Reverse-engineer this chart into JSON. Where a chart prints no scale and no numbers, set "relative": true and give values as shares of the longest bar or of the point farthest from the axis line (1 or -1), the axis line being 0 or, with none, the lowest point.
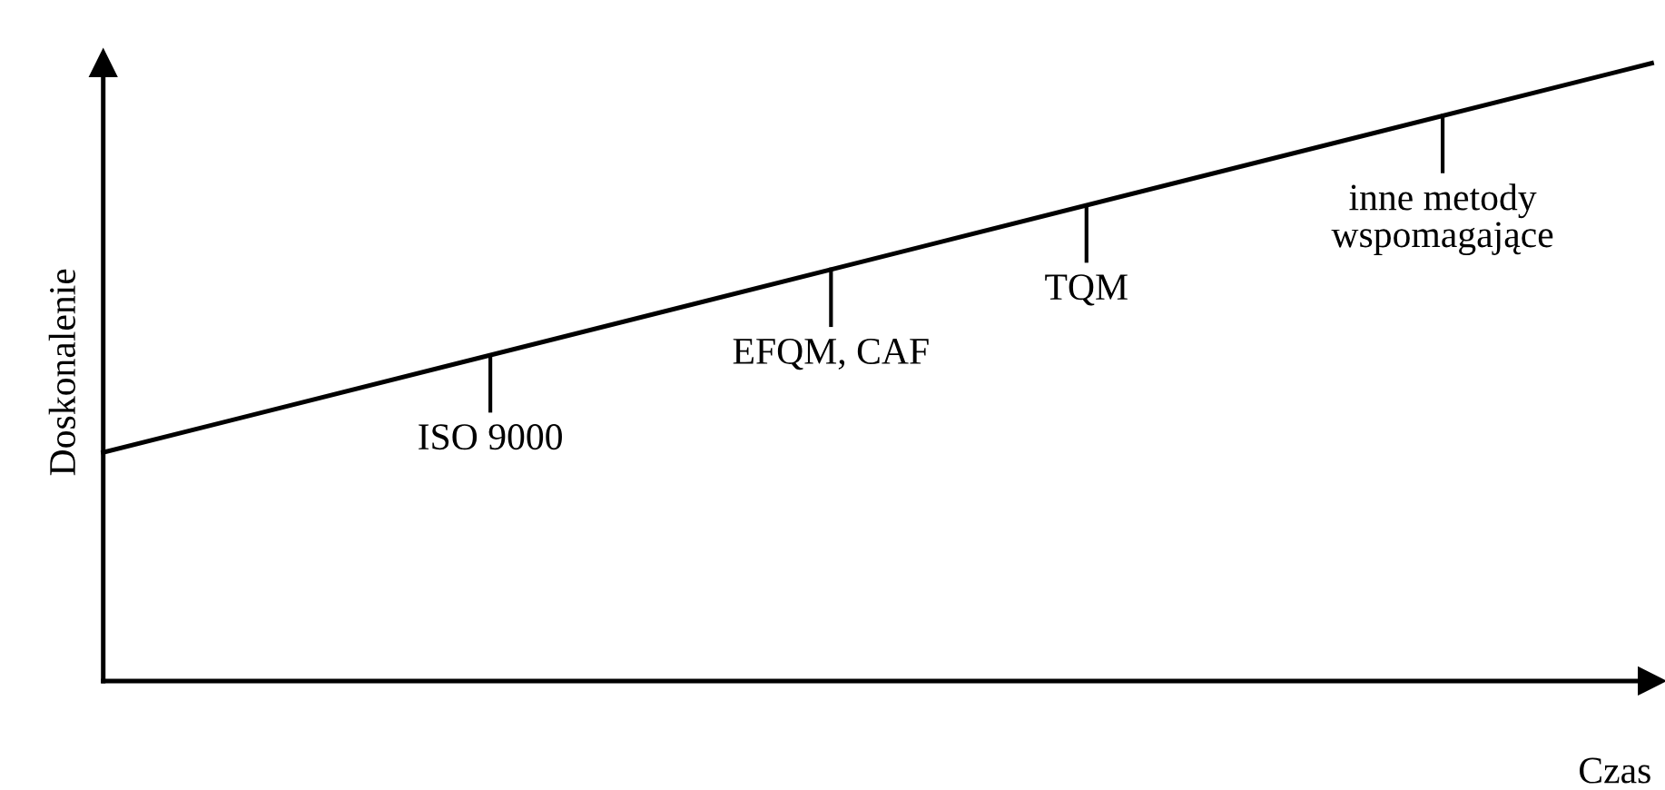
{
  "chart_data": {
    "type": "line",
    "relative": true,
    "categories": [
      null,
      null
    ],
    "series": [
      {
        "color": "#000000",
        "values": [
          0.37,
          1
        ]
      }
    ],
    "xlabel": "Czas",
    "ylabel": "Doskonalenie",
    "annotations": [
      "ISO 9000",
      "EFQM, CAF",
      "TQM",
      "inne metody\nwspomagające"
    ],
    "marker": "none",
    "line_style": "solid",
    "legend": false
  }
}
